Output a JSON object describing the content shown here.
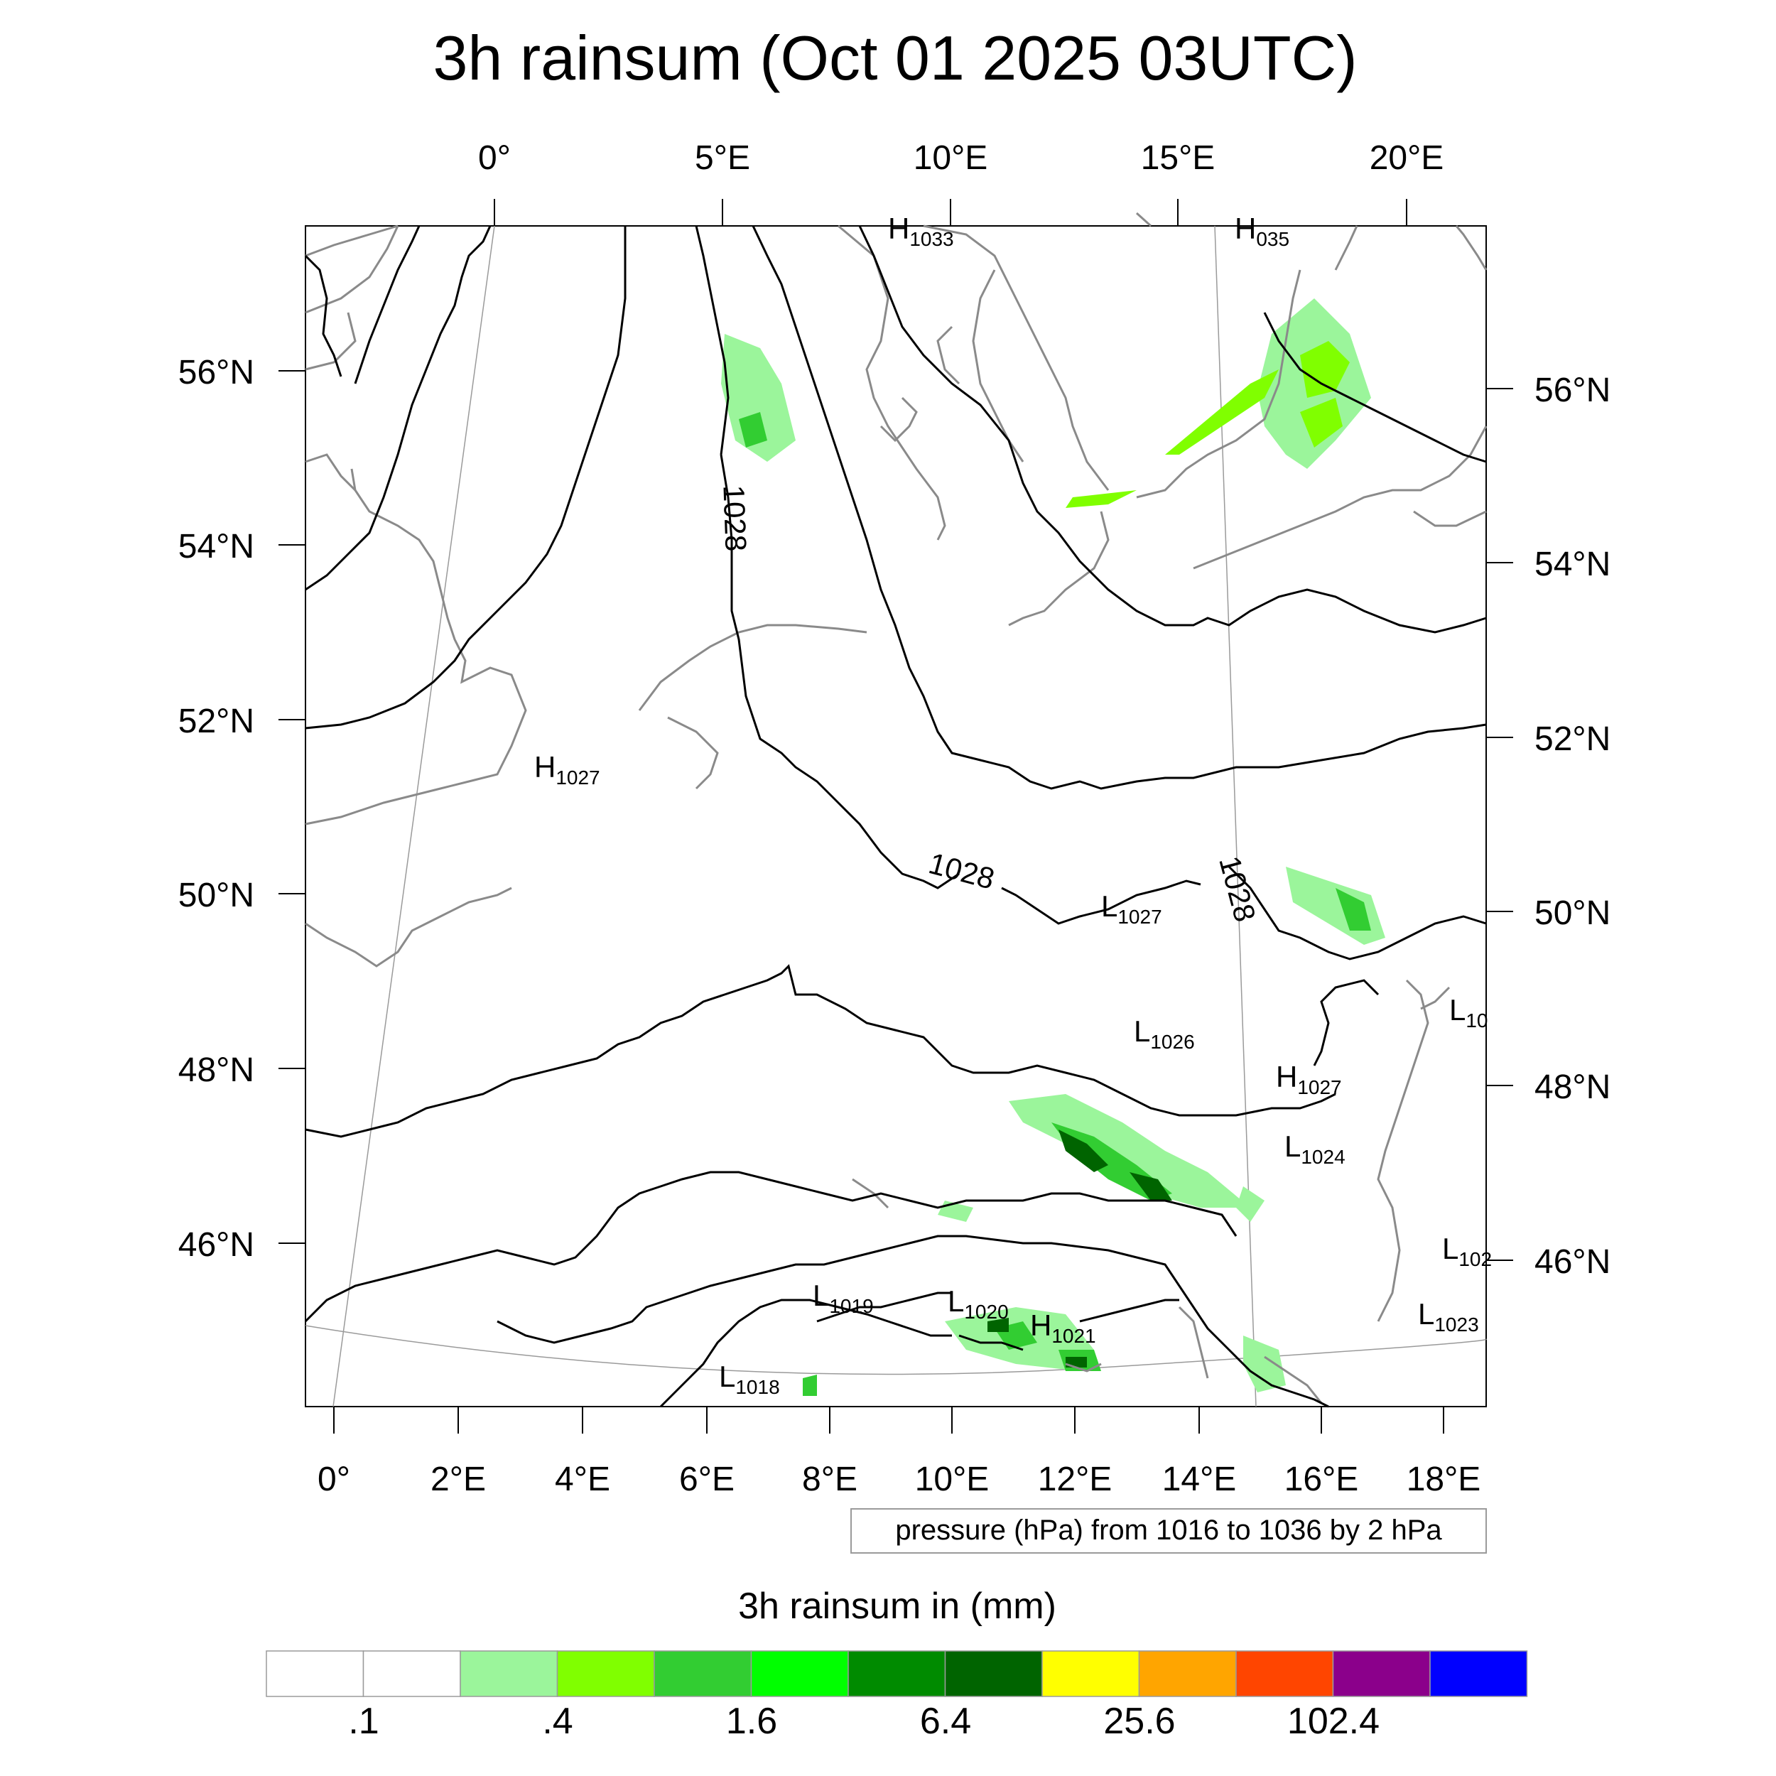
{
  "title": "3h rainsum (Oct 01 2025 03UTC)",
  "top_lon_labels": [
    "0°",
    "5°E",
    "10°E",
    "15°E",
    "20°E"
  ],
  "bottom_lon_labels": [
    "0°",
    "2°E",
    "4°E",
    "6°E",
    "8°E",
    "10°E",
    "12°E",
    "14°E",
    "16°E",
    "18°E"
  ],
  "left_lat_labels": [
    "56°N",
    "54°N",
    "52°N",
    "50°N",
    "48°N",
    "46°N"
  ],
  "right_lat_labels": [
    "56°N",
    "54°N",
    "52°N",
    "50°N",
    "48°N",
    "46°N"
  ],
  "contour_labels": [
    "1028",
    "1028",
    "1028"
  ],
  "pressure_centers": [
    {
      "letter": "H",
      "value": "1033"
    },
    {
      "letter": "H",
      "value": "035"
    },
    {
      "letter": "H",
      "value": "1027"
    },
    {
      "letter": "L",
      "value": "1027"
    },
    {
      "letter": "L",
      "value": "1026"
    },
    {
      "letter": "H",
      "value": "1027"
    },
    {
      "letter": "L",
      "value": "1024"
    },
    {
      "letter": "L",
      "value": "10"
    },
    {
      "letter": "L",
      "value": "102"
    },
    {
      "letter": "L",
      "value": "1023"
    },
    {
      "letter": "L",
      "value": "1019"
    },
    {
      "letter": "L",
      "value": "1020"
    },
    {
      "letter": "H",
      "value": "1021"
    },
    {
      "letter": "L",
      "value": "1018"
    }
  ],
  "contour_info": "pressure (hPa) from 1016 to 1036 by 2 hPa",
  "colorbar": {
    "title": "3h rainsum in (mm)",
    "colors": [
      "#ffffff",
      "#ffffff",
      "#9bf59b",
      "#80ff00",
      "#32cd32",
      "#00ff00",
      "#008b00",
      "#006400",
      "#ffff00",
      "#ffa500",
      "#ff4500",
      "#8b008b",
      "#0000ff"
    ],
    "tick_labels": [
      ".1",
      ".4",
      "1.6",
      "6.4",
      "25.6",
      "102.4"
    ]
  }
}
